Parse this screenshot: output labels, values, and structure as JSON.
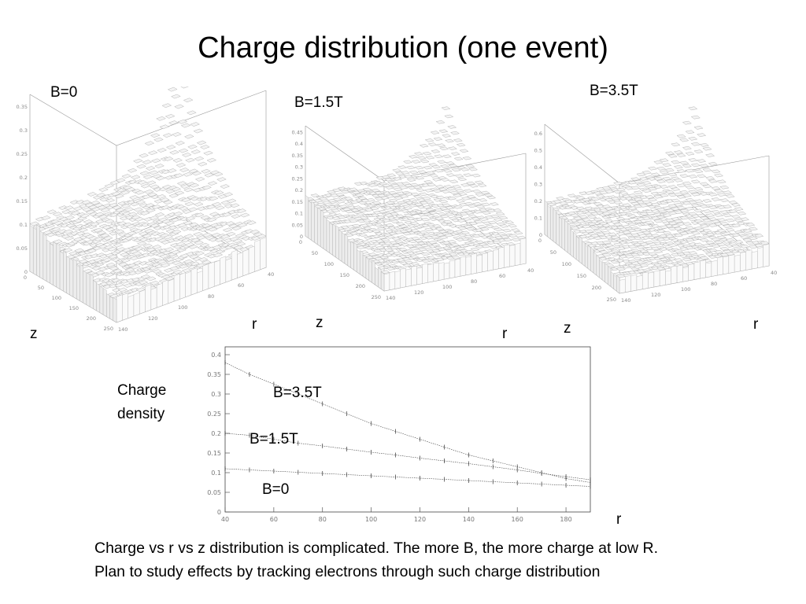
{
  "title": "Charge distribution (one event)",
  "surface_plots": [
    {
      "label": "B=0",
      "z_axis_ticks": [
        "0",
        "0.05",
        "0.1",
        "0.15",
        "0.2",
        "0.25",
        "0.3",
        "0.35"
      ],
      "z_ticks": [
        "0",
        "50",
        "100",
        "150",
        "200",
        "250"
      ],
      "r_ticks": [
        "140",
        "120",
        "100",
        "80",
        "60",
        "40"
      ],
      "z_label": "z",
      "r_label": "r",
      "peak": 0.38
    },
    {
      "label": "B=1.5T",
      "z_axis_ticks": [
        "0",
        "0.05",
        "0.1",
        "0.15",
        "0.2",
        "0.25",
        "0.3",
        "0.35",
        "0.4",
        "0.45"
      ],
      "z_ticks": [
        "0",
        "50",
        "100",
        "150",
        "200",
        "250"
      ],
      "r_ticks": [
        "140",
        "120",
        "100",
        "80",
        "60",
        "40"
      ],
      "z_label": "z",
      "r_label": "r",
      "peak": 0.48
    },
    {
      "label": "B=3.5T",
      "z_axis_ticks": [
        "0",
        "0.1",
        "0.2",
        "0.3",
        "0.4",
        "0.5",
        "0.6"
      ],
      "z_ticks": [
        "0",
        "50",
        "100",
        "150",
        "200",
        "250"
      ],
      "r_ticks": [
        "140",
        "120",
        "100",
        "80",
        "60",
        "40"
      ],
      "z_label": "z",
      "r_label": "r",
      "peak": 0.65
    }
  ],
  "chart_data": {
    "type": "line",
    "xlabel": "r",
    "ylabel": "Charge density",
    "xlim": [
      40,
      190
    ],
    "ylim": [
      0,
      0.42
    ],
    "x_ticks": [
      40,
      60,
      80,
      100,
      120,
      140,
      160,
      180
    ],
    "y_ticks": [
      0,
      0.05,
      0.1,
      0.15,
      0.2,
      0.25,
      0.3,
      0.35,
      0.4
    ],
    "series": [
      {
        "name": "B=3.5T",
        "x": [
          40,
          50,
          60,
          70,
          80,
          90,
          100,
          110,
          120,
          130,
          140,
          150,
          160,
          170,
          180,
          190
        ],
        "y": [
          0.38,
          0.35,
          0.325,
          0.3,
          0.275,
          0.25,
          0.225,
          0.205,
          0.185,
          0.165,
          0.145,
          0.13,
          0.115,
          0.1,
          0.085,
          0.075
        ]
      },
      {
        "name": "B=1.5T",
        "x": [
          40,
          50,
          60,
          70,
          80,
          90,
          100,
          110,
          120,
          130,
          140,
          150,
          160,
          170,
          180,
          190
        ],
        "y": [
          0.2,
          0.195,
          0.185,
          0.175,
          0.168,
          0.16,
          0.152,
          0.145,
          0.137,
          0.13,
          0.123,
          0.115,
          0.107,
          0.098,
          0.09,
          0.082
        ]
      },
      {
        "name": "B=0",
        "x": [
          40,
          50,
          60,
          70,
          80,
          90,
          100,
          110,
          120,
          130,
          140,
          150,
          160,
          170,
          180,
          190
        ],
        "y": [
          0.11,
          0.107,
          0.104,
          0.101,
          0.098,
          0.095,
          0.092,
          0.089,
          0.086,
          0.083,
          0.08,
          0.077,
          0.074,
          0.071,
          0.068,
          0.065
        ]
      }
    ]
  },
  "caption": {
    "line1": "Charge vs r vs z distribution is complicated. The more B, the more charge at low R.",
    "line2": "Plan to study effects by tracking electrons through such charge distribution"
  }
}
